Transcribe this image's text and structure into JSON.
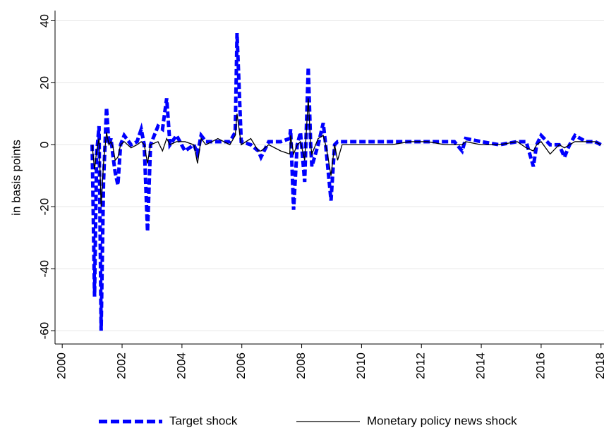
{
  "chart_data": {
    "type": "line",
    "y_label": "in basis points",
    "x": [
      2001.0,
      2001.08,
      2001.15,
      2001.23,
      2001.3,
      2001.38,
      2001.48,
      2001.56,
      2001.63,
      2001.7,
      2001.77,
      2001.86,
      2001.95,
      2002.07,
      2002.3,
      2002.5,
      2002.64,
      2002.74,
      2002.85,
      2002.95,
      2003.2,
      2003.35,
      2003.49,
      2003.6,
      2003.82,
      2004.1,
      2004.4,
      2004.52,
      2004.64,
      2004.8,
      2005.2,
      2005.6,
      2005.78,
      2005.84,
      2005.98,
      2006.3,
      2006.55,
      2006.64,
      2006.9,
      2007.3,
      2007.6,
      2007.63,
      2007.73,
      2007.85,
      2007.96,
      2008.03,
      2008.1,
      2008.22,
      2008.3,
      2008.34,
      2008.55,
      2008.72,
      2008.8,
      2008.86,
      2008.98,
      2009.1,
      2009.2,
      2009.35,
      2009.8,
      2010.3,
      2011.0,
      2011.6,
      2012.2,
      2012.8,
      2013.1,
      2013.36,
      2013.48,
      2014.0,
      2014.6,
      2015.2,
      2015.5,
      2015.74,
      2015.85,
      2016.0,
      2016.3,
      2016.6,
      2016.78,
      2016.95,
      2017.13,
      2017.5,
      2017.8,
      2018.0
    ],
    "series": [
      {
        "name": "Target shock",
        "color": "#0000ff",
        "dashed": true,
        "values": [
          0,
          -49,
          -3,
          6,
          -60,
          -12,
          12,
          0,
          2,
          -4,
          -9,
          -13,
          0,
          3,
          0,
          1,
          5,
          0,
          -28,
          0,
          6,
          5,
          15,
          0,
          3,
          -2,
          0,
          -3,
          3,
          1,
          1,
          1,
          4,
          36,
          1,
          0,
          -2,
          -4,
          1,
          1,
          2,
          5,
          -21,
          0,
          4,
          -4,
          -12,
          25,
          0,
          -7,
          0,
          7,
          0,
          -6,
          -18,
          0,
          1,
          1,
          1,
          1,
          1,
          1,
          1,
          1,
          1,
          -2,
          2,
          1,
          0,
          1,
          1,
          -7,
          0,
          3,
          0,
          0,
          -4,
          0,
          3,
          1,
          1,
          0
        ]
      },
      {
        "name": "Monetary policy news shock",
        "color": "#000000",
        "dashed": false,
        "values": [
          0,
          -8,
          -2,
          2,
          -20,
          -6,
          4,
          0,
          1,
          -1,
          -5,
          -4,
          0,
          1,
          -1,
          0,
          1,
          0,
          -6,
          0,
          1,
          -2,
          2,
          0,
          1,
          1,
          0,
          -6,
          2,
          0,
          2,
          0,
          3,
          10,
          0,
          2,
          -2,
          -2,
          0,
          -2,
          -3,
          3,
          -3,
          0,
          1,
          -2,
          -5,
          15,
          0,
          -3,
          2,
          3,
          0,
          -3,
          -10,
          0,
          -5,
          0,
          0,
          0,
          0,
          1,
          1,
          0,
          0,
          0,
          1,
          0,
          0,
          1,
          -1,
          -2,
          0,
          1,
          -3,
          0,
          -1,
          0,
          1,
          1,
          1,
          0
        ]
      }
    ],
    "xlim": [
      1999.76,
      2018.1
    ],
    "ylim": [
      -64.3,
      43.3
    ],
    "xticks": [
      2000,
      2002,
      2004,
      2006,
      2008,
      2010,
      2012,
      2014,
      2016,
      2018
    ],
    "yticks": [
      -60,
      -40,
      -20,
      0,
      20,
      40
    ],
    "grid": true,
    "legend": "bottom"
  }
}
